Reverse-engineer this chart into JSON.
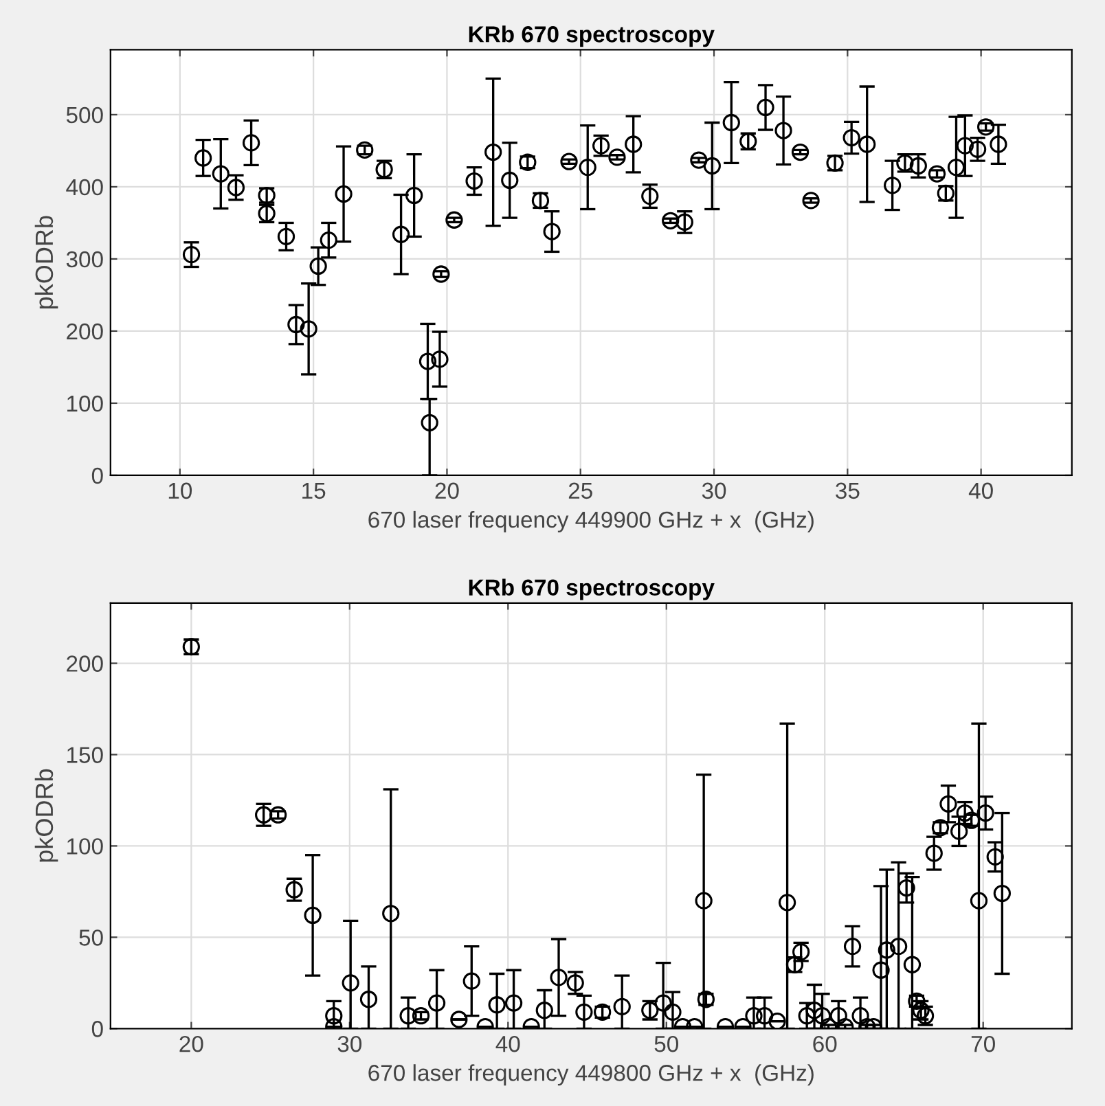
{
  "chart_data": [
    {
      "type": "scatter",
      "title": "KRb 670 spectroscopy",
      "xlabel": "670 laser frequency 449900 GHz + x  (GHz)",
      "ylabel": "pkODRb",
      "xlim": [
        7.4,
        43.4
      ],
      "xticks": [
        10,
        15,
        20,
        25,
        30,
        35,
        40
      ],
      "ylim": [
        0,
        590
      ],
      "yticks": [
        0,
        100,
        200,
        300,
        400,
        500
      ],
      "grid": true,
      "marker": "circle",
      "series": [
        {
          "color": "#000000",
          "x": [
            10.43,
            10.87,
            11.53,
            12.1,
            12.67,
            13.25,
            13.25,
            13.98,
            14.35,
            14.82,
            15.18,
            15.57,
            16.13,
            16.92,
            17.65,
            18.28,
            18.77,
            19.28,
            19.35,
            19.78,
            19.73,
            20.27,
            21.02,
            21.73,
            22.35,
            23.02,
            23.5,
            23.93,
            24.57,
            25.27,
            25.77,
            26.37,
            26.98,
            27.6,
            28.37,
            28.9,
            29.43,
            29.93,
            30.65,
            31.28,
            31.93,
            32.6,
            33.23,
            33.63,
            34.53,
            35.15,
            35.73,
            36.68,
            37.15,
            37.65,
            38.35,
            38.68,
            39.07,
            39.4,
            39.87,
            40.18,
            40.65
          ],
          "values": [
            306,
            440,
            418,
            399,
            461,
            388,
            363,
            331,
            209,
            203,
            290,
            326,
            390,
            451,
            424,
            334,
            388,
            158,
            73,
            279,
            161,
            354,
            408,
            448,
            409,
            434,
            381,
            338,
            435,
            427,
            457,
            441,
            459,
            387,
            353,
            351,
            437,
            429,
            489,
            463,
            510,
            478,
            448,
            381,
            433,
            468,
            459,
            402,
            433,
            429,
            418,
            391,
            427,
            457,
            452,
            483,
            459
          ],
          "errors": [
            17,
            25,
            48,
            17,
            31,
            10,
            12,
            19,
            27,
            63,
            26,
            24,
            66,
            6,
            12,
            55,
            57,
            52,
            [
              0,
              106
            ],
            4,
            38,
            3,
            19,
            102,
            52,
            8,
            10,
            28,
            3,
            58,
            14,
            3,
            39,
            16,
            3,
            15,
            3,
            60,
            56,
            11,
            31,
            47,
            3,
            3,
            10,
            22,
            80,
            34,
            12,
            16,
            5,
            10,
            70,
            42,
            16,
            5,
            27
          ]
        }
      ]
    },
    {
      "type": "scatter",
      "title": "KRb 670 spectroscopy",
      "xlabel": "670 laser frequency 449800 GHz + x  (GHz)",
      "ylabel": "pkODRb",
      "xlim": [
        14.9,
        75.6
      ],
      "xticks": [
        20,
        30,
        40,
        50,
        60,
        70
      ],
      "ylim": [
        0,
        233
      ],
      "yticks": [
        0,
        50,
        100,
        150,
        200
      ],
      "grid": true,
      "marker": "circle",
      "series": [
        {
          "color": "#000000",
          "x": [
            20,
            24.57,
            25.48,
            26.5,
            27.67,
            29.0,
            29.0,
            30.06,
            31.2,
            32.6,
            33.7,
            34.5,
            35.5,
            36.9,
            37.7,
            38.56,
            39.3,
            40.36,
            41.47,
            42.3,
            43.2,
            44.25,
            44.8,
            45.96,
            47.2,
            48.96,
            49.8,
            50.4,
            51.03,
            51.78,
            52.36,
            52.5,
            53.72,
            54.83,
            55.52,
            56.2,
            57.0,
            57.63,
            58.1,
            58.5,
            58.87,
            59.34,
            59.84,
            60.23,
            60.87,
            61.28,
            61.75,
            62.25,
            62.67,
            63.08,
            63.55,
            63.91,
            64.66,
            65.16,
            65.52,
            65.8,
            66.07,
            66.35,
            66.9,
            67.3,
            67.8,
            68.48,
            68.85,
            69.26,
            69.73,
            70.15,
            70.76,
            71.2
          ],
          "values": [
            209,
            117,
            117,
            76,
            62,
            7,
            1,
            25,
            16,
            63,
            7,
            7,
            14,
            5,
            26,
            1,
            13,
            14,
            1,
            10,
            28,
            25,
            9,
            9,
            12,
            10,
            14,
            9,
            1,
            1,
            70,
            16,
            1,
            1,
            7,
            7,
            4,
            69,
            35,
            42,
            7,
            10,
            7,
            1,
            7,
            1,
            45,
            7,
            1,
            1,
            32,
            43,
            45,
            77,
            35,
            15,
            10,
            7,
            96,
            110,
            123,
            108,
            118,
            114,
            70,
            118,
            94,
            74
          ],
          "errors": [
            4,
            6,
            2,
            6,
            33,
            8,
            null,
            [
              0,
              59
            ],
            [
              0,
              34
            ],
            [
              0,
              131
            ],
            [
              0,
              17
            ],
            2,
            [
              0,
              32
            ],
            null,
            19,
            null,
            [
              0,
              30
            ],
            [
              0,
              32
            ],
            null,
            [
              0,
              21
            ],
            21,
            6,
            9,
            3,
            [
              0,
              29
            ],
            5,
            [
              0,
              36
            ],
            [
              0,
              20
            ],
            null,
            null,
            [
              0,
              139
            ],
            3,
            null,
            null,
            [
              0,
              17
            ],
            [
              0,
              17
            ],
            null,
            [
              0,
              167
            ],
            4,
            5,
            7,
            [
              0,
              24
            ],
            [
              0,
              19
            ],
            1,
            [
              0,
              15
            ],
            1,
            11,
            [
              0,
              17
            ],
            1,
            1,
            [
              0,
              78
            ],
            [
              0,
              87
            ],
            [
              0,
              91
            ],
            8,
            [
              0,
              83
            ],
            3,
            5,
            5,
            9,
            3,
            10,
            8,
            6,
            3,
            [
              0,
              167
            ],
            9,
            8,
            44
          ]
        }
      ]
    }
  ]
}
